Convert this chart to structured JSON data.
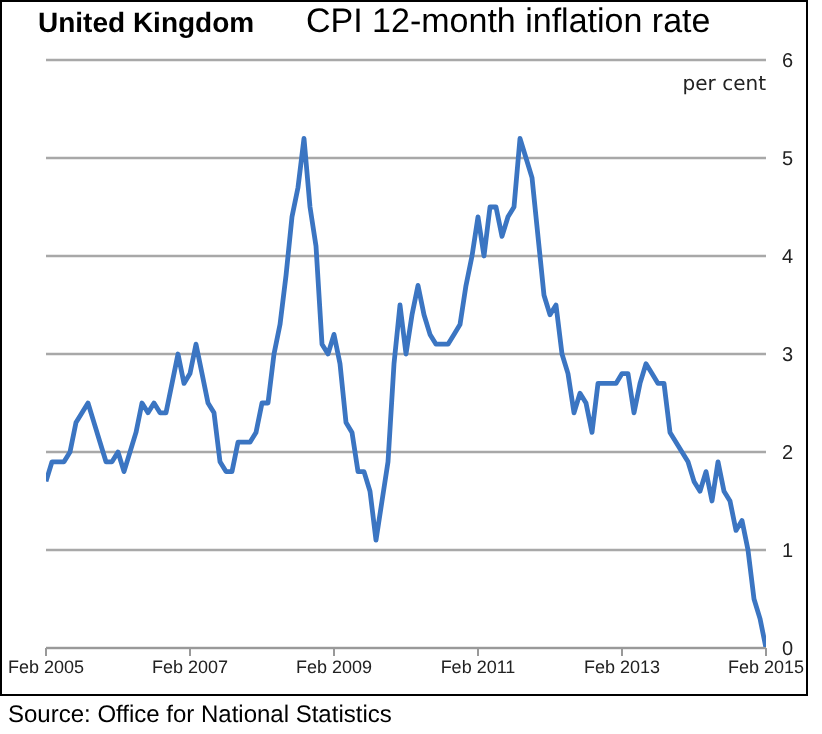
{
  "chart_data": {
    "type": "line",
    "title": "United Kingdom",
    "subtitle": "CPI 12-month inflation rate",
    "ylabel": "per cent",
    "annotations": [
      "Source: Office for National Statistics"
    ],
    "x": [
      "2005-02",
      "2005-03",
      "2005-04",
      "2005-05",
      "2005-06",
      "2005-07",
      "2005-08",
      "2005-09",
      "2005-10",
      "2005-11",
      "2005-12",
      "2006-01",
      "2006-02",
      "2006-03",
      "2006-04",
      "2006-05",
      "2006-06",
      "2006-07",
      "2006-08",
      "2006-09",
      "2006-10",
      "2006-11",
      "2006-12",
      "2007-01",
      "2007-02",
      "2007-03",
      "2007-04",
      "2007-05",
      "2007-06",
      "2007-07",
      "2007-08",
      "2007-09",
      "2007-10",
      "2007-11",
      "2007-12",
      "2008-01",
      "2008-02",
      "2008-03",
      "2008-04",
      "2008-05",
      "2008-06",
      "2008-07",
      "2008-08",
      "2008-09",
      "2008-10",
      "2008-11",
      "2008-12",
      "2009-01",
      "2009-02",
      "2009-03",
      "2009-04",
      "2009-05",
      "2009-06",
      "2009-07",
      "2009-08",
      "2009-09",
      "2009-10",
      "2009-11",
      "2009-12",
      "2010-01",
      "2010-02",
      "2010-03",
      "2010-04",
      "2010-05",
      "2010-06",
      "2010-07",
      "2010-08",
      "2010-09",
      "2010-10",
      "2010-11",
      "2010-12",
      "2011-01",
      "2011-02",
      "2011-03",
      "2011-04",
      "2011-05",
      "2011-06",
      "2011-07",
      "2011-08",
      "2011-09",
      "2011-10",
      "2011-11",
      "2011-12",
      "2012-01",
      "2012-02",
      "2012-03",
      "2012-04",
      "2012-05",
      "2012-06",
      "2012-07",
      "2012-08",
      "2012-09",
      "2012-10",
      "2012-11",
      "2012-12",
      "2013-01",
      "2013-02",
      "2013-03",
      "2013-04",
      "2013-05",
      "2013-06",
      "2013-07",
      "2013-08",
      "2013-09",
      "2013-10",
      "2013-11",
      "2013-12",
      "2014-01",
      "2014-02",
      "2014-03",
      "2014-04",
      "2014-05",
      "2014-06",
      "2014-07",
      "2014-08",
      "2014-09",
      "2014-10",
      "2014-11",
      "2014-12",
      "2015-01",
      "2015-02"
    ],
    "series": [
      {
        "color": "#3b75c2",
        "values": [
          1.7,
          1.9,
          1.9,
          1.9,
          2.0,
          2.3,
          2.4,
          2.5,
          2.3,
          2.1,
          1.9,
          1.9,
          2.0,
          1.8,
          2.0,
          2.2,
          2.5,
          2.4,
          2.5,
          2.4,
          2.4,
          2.7,
          3.0,
          2.7,
          2.8,
          3.1,
          2.8,
          2.5,
          2.4,
          1.9,
          1.8,
          1.8,
          2.1,
          2.1,
          2.1,
          2.2,
          2.5,
          2.5,
          3.0,
          3.3,
          3.8,
          4.4,
          4.7,
          5.2,
          4.5,
          4.1,
          3.1,
          3.0,
          3.2,
          2.9,
          2.3,
          2.2,
          1.8,
          1.8,
          1.6,
          1.1,
          1.5,
          1.9,
          2.9,
          3.5,
          3.0,
          3.4,
          3.7,
          3.4,
          3.2,
          3.1,
          3.1,
          3.1,
          3.2,
          3.3,
          3.7,
          4.0,
          4.4,
          4.0,
          4.5,
          4.5,
          4.2,
          4.4,
          4.5,
          5.2,
          5.0,
          4.8,
          4.2,
          3.6,
          3.4,
          3.5,
          3.0,
          2.8,
          2.4,
          2.6,
          2.5,
          2.2,
          2.7,
          2.7,
          2.7,
          2.7,
          2.8,
          2.8,
          2.4,
          2.7,
          2.9,
          2.8,
          2.7,
          2.7,
          2.2,
          2.1,
          2.0,
          1.9,
          1.7,
          1.6,
          1.8,
          1.5,
          1.9,
          1.6,
          1.5,
          1.2,
          1.3,
          1.0,
          0.5,
          0.3,
          0.0
        ]
      }
    ],
    "xlim": [
      "2005-02",
      "2015-02"
    ],
    "xticks": [
      {
        "value": "2005-02",
        "label": "Feb 2005"
      },
      {
        "value": "2007-02",
        "label": "Feb 2007"
      },
      {
        "value": "2009-02",
        "label": "Feb 2009"
      },
      {
        "value": "2011-02",
        "label": "Feb 2011"
      },
      {
        "value": "2013-02",
        "label": "Feb 2013"
      },
      {
        "value": "2015-02",
        "label": "Feb 2015"
      }
    ],
    "ylim": [
      0,
      6
    ],
    "yticks": [
      0,
      1,
      2,
      3,
      4,
      5,
      6
    ],
    "grid": "y",
    "legend": false,
    "marker": "none",
    "line_style": "solid"
  }
}
